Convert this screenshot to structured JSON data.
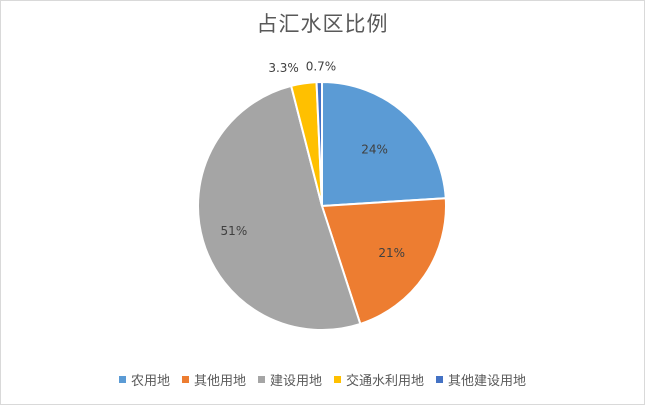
{
  "chart_data": {
    "type": "pie",
    "title": "占汇水区比例",
    "categories": [
      "农用地",
      "其他用地",
      "建设用地",
      "交通水利用地",
      "其他建设用地"
    ],
    "values": [
      24,
      21,
      51,
      3.3,
      0.7
    ],
    "data_labels": [
      "24%",
      "21%",
      "51%",
      "3.3%",
      "0.7%"
    ],
    "colors": [
      "#5b9bd5",
      "#ed7d31",
      "#a5a5a5",
      "#ffc000",
      "#4472c4"
    ],
    "start_angle": "12 o'clock",
    "direction": "clockwise",
    "legend_position": "bottom"
  }
}
